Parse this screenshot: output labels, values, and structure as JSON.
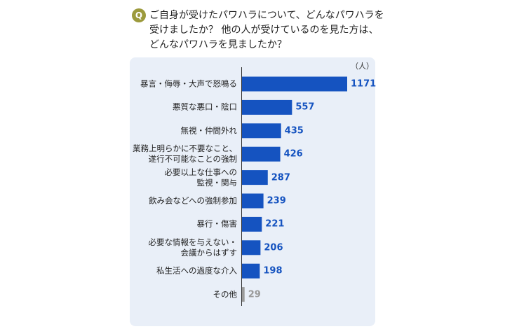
{
  "chart_data": {
    "type": "hbar",
    "badge": "Q",
    "title": "ご自身が受けたパワハラについて、どんなパワハラを\n受けましたか？ 他の人が受けているのを見た方は、\nどんなパワハラを見ましたか？",
    "unit": "（人）",
    "categories": [
      "暴言・侮辱・大声で怒鳴る",
      "悪質な悪口・陰口",
      "無視・仲間外れ",
      "業務上明らかに不要なこと、\n遂行不可能なことの強制",
      "必要以上な仕事への\n監視・関与",
      "飲み会などへの強制参加",
      "暴行・傷害",
      "必要な情報を与えない・\n会議からはずす",
      "私生活への過度な介入",
      "その他"
    ],
    "values": [
      1171,
      557,
      435,
      426,
      287,
      239,
      221,
      206,
      198,
      29
    ],
    "colors": [
      "#1553c0",
      "#1553c0",
      "#1553c0",
      "#1553c0",
      "#1553c0",
      "#1553c0",
      "#1553c0",
      "#1553c0",
      "#1553c0",
      "#9a9a9a"
    ]
  }
}
